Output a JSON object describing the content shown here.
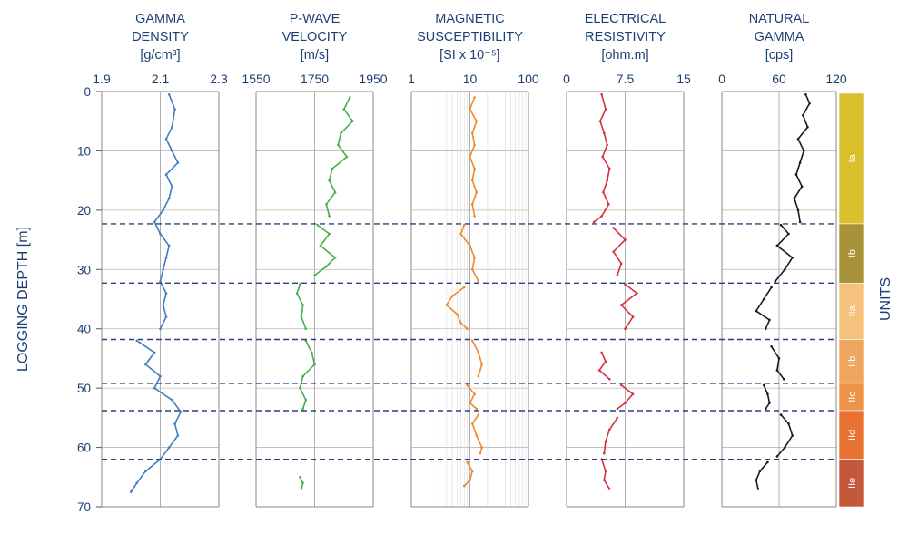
{
  "chart_data": {
    "type": "line",
    "y_axis": {
      "label": "LOGGING DEPTH [m]",
      "range": [
        0,
        70
      ],
      "ticks": [
        "0",
        "10",
        "20",
        "30",
        "40",
        "50",
        "60",
        "70"
      ],
      "grid": true
    },
    "units_label": "UNITS",
    "unit_boundaries_depth": [
      22.3,
      32.3,
      41.8,
      49.2,
      53.8,
      62.0
    ],
    "units": [
      {
        "name": "Ia",
        "top": 0.3,
        "bottom": 22.3,
        "color": "#d8bf2b"
      },
      {
        "name": "Ib",
        "top": 22.3,
        "bottom": 32.3,
        "color": "#a8933a"
      },
      {
        "name": "IIa",
        "top": 32.3,
        "bottom": 41.8,
        "color": "#f4c27a"
      },
      {
        "name": "IIb",
        "top": 41.8,
        "bottom": 49.2,
        "color": "#eea55d"
      },
      {
        "name": "IIc",
        "top": 49.2,
        "bottom": 53.8,
        "color": "#ee9347"
      },
      {
        "name": "IId",
        "top": 53.8,
        "bottom": 62.0,
        "color": "#ea7134"
      },
      {
        "name": "IIe",
        "top": 62.0,
        "bottom": 70.0,
        "color": "#c4583a"
      }
    ],
    "panels": [
      {
        "title": [
          "GAMMA",
          "DENSITY",
          "[g/cm³]"
        ],
        "tick_labels": [
          "1.9",
          "2.1",
          "2.3"
        ],
        "tick_values": [
          1.9,
          2.1,
          2.3
        ],
        "range": [
          1.9,
          2.3
        ],
        "scale": "linear",
        "color": "#3f7fc0",
        "segments": [
          {
            "depth": [
              0.5,
              3,
              6,
              8,
              10,
              12,
              14,
              16,
              18,
              20,
              22,
              24,
              26,
              28,
              30,
              32,
              34,
              36,
              38,
              40
            ],
            "value": [
              2.13,
              2.15,
              2.14,
              2.12,
              2.14,
              2.16,
              2.12,
              2.14,
              2.13,
              2.11,
              2.08,
              2.1,
              2.13,
              2.12,
              2.11,
              2.1,
              2.12,
              2.11,
              2.12,
              2.1
            ]
          },
          {
            "depth": [
              42,
              44,
              46,
              48,
              50,
              52,
              54,
              56,
              58,
              60,
              62,
              64,
              66,
              67.5
            ],
            "value": [
              2.02,
              2.08,
              2.05,
              2.1,
              2.08,
              2.14,
              2.17,
              2.15,
              2.16,
              2.13,
              2.1,
              2.05,
              2.02,
              2.0
            ]
          }
        ]
      },
      {
        "title": [
          "P-WAVE",
          "VELOCITY",
          "[m/s]"
        ],
        "tick_labels": [
          "1550",
          "1750",
          "1950"
        ],
        "tick_values": [
          1550,
          1750,
          1950
        ],
        "range": [
          1550,
          1950
        ],
        "scale": "linear",
        "color": "#4cad4c",
        "segments": [
          {
            "depth": [
              1,
              3,
              5,
              7,
              9,
              11,
              13,
              15,
              17,
              19,
              21
            ],
            "value": [
              1870,
              1850,
              1880,
              1840,
              1830,
              1860,
              1810,
              1800,
              1820,
              1790,
              1800
            ]
          },
          {
            "depth": [
              22.5,
              24,
              26,
              28,
              29.5,
              31
            ],
            "value": [
              1760,
              1800,
              1770,
              1820,
              1790,
              1750
            ]
          },
          {
            "depth": [
              32.5,
              34,
              36,
              38,
              40
            ],
            "value": [
              1700,
              1690,
              1710,
              1705,
              1720
            ]
          },
          {
            "depth": [
              42,
              44,
              46,
              48,
              50,
              52,
              53.5
            ],
            "value": [
              1720,
              1740,
              1750,
              1710,
              1700,
              1720,
              1710
            ]
          },
          {
            "depth": [
              65,
              66,
              67
            ],
            "value": [
              1700,
              1710,
              1705
            ]
          }
        ]
      },
      {
        "title": [
          "MAGNETIC",
          "SUSCEPTIBILITY",
          "[SI x 10⁻⁵]"
        ],
        "tick_labels": [
          "1",
          "10",
          "100"
        ],
        "tick_values": [
          1,
          10,
          100
        ],
        "range": [
          1,
          100
        ],
        "scale": "log",
        "color": "#ec8a2c",
        "segments": [
          {
            "depth": [
              1,
              3,
              5,
              7,
              9,
              11,
              13,
              15,
              17,
              19,
              21
            ],
            "value": [
              12,
              10,
              13,
              11,
              12,
              10,
              12,
              11,
              13,
              11,
              12
            ]
          },
          {
            "depth": [
              22.5,
              24,
              26,
              28,
              30,
              32
            ],
            "value": [
              8,
              7,
              10,
              12,
              11,
              14
            ]
          },
          {
            "depth": [
              33,
              34.5,
              36,
              37.5,
              39,
              40
            ],
            "value": [
              8,
              5,
              4,
              6,
              7,
              9
            ]
          },
          {
            "depth": [
              42,
              44,
              46,
              48
            ],
            "value": [
              11,
              14,
              16,
              14
            ]
          },
          {
            "depth": [
              49.5,
              51,
              52.5,
              53.5
            ],
            "value": [
              9,
              12,
              10,
              13
            ]
          },
          {
            "depth": [
              54.5,
              56,
              58,
              60,
              61
            ],
            "value": [
              14,
              11,
              13,
              16,
              15
            ]
          },
          {
            "depth": [
              62.5,
              64,
              65.5,
              66.5
            ],
            "value": [
              9,
              11,
              10,
              8
            ]
          }
        ]
      },
      {
        "title": [
          "ELECTRICAL",
          "RESISTIVITY",
          "[ohm.m]"
        ],
        "tick_labels": [
          "0",
          "7.5",
          "15"
        ],
        "tick_values": [
          0,
          7.5,
          15
        ],
        "range": [
          0,
          15
        ],
        "scale": "linear",
        "color": "#d63040",
        "segments": [
          {
            "depth": [
              0.5,
              3,
              5,
              7,
              9,
              11,
              13,
              15,
              17,
              19,
              21,
              22
            ],
            "value": [
              4.5,
              5.0,
              4.3,
              4.8,
              5.2,
              4.6,
              5.5,
              5.2,
              4.7,
              5.4,
              4.5,
              3.5
            ]
          },
          {
            "depth": [
              23,
              25,
              27,
              29,
              31
            ],
            "value": [
              6.0,
              7.5,
              6.0,
              7.0,
              6.5
            ]
          },
          {
            "depth": [
              32.5,
              34,
              36,
              38,
              40
            ],
            "value": [
              7.5,
              9.0,
              7.0,
              8.5,
              7.5
            ]
          },
          {
            "depth": [
              44,
              45.5,
              47,
              48.5
            ],
            "value": [
              4.5,
              5.0,
              4.2,
              5.5
            ]
          },
          {
            "depth": [
              49.5,
              51,
              52.5,
              53.5
            ],
            "value": [
              7.0,
              8.5,
              7.5,
              6.5
            ]
          },
          {
            "depth": [
              55,
              57,
              59,
              61
            ],
            "value": [
              6.5,
              5.5,
              5.0,
              4.8
            ]
          },
          {
            "depth": [
              62,
              64,
              65.5,
              67
            ],
            "value": [
              4.5,
              5.0,
              4.8,
              5.5
            ]
          }
        ]
      },
      {
        "title": [
          "NATURAL",
          "GAMMA",
          "[cps]"
        ],
        "tick_labels": [
          "0",
          "60",
          "120"
        ],
        "tick_values": [
          0,
          60,
          120
        ],
        "range": [
          0,
          120
        ],
        "scale": "linear",
        "color": "#1a1a1a",
        "segments": [
          {
            "depth": [
              0.5,
              2,
              4,
              6,
              8,
              10,
              12,
              14,
              16,
              18,
              20,
              22
            ],
            "value": [
              88,
              92,
              85,
              90,
              80,
              86,
              82,
              78,
              84,
              76,
              80,
              82
            ]
          },
          {
            "depth": [
              22.5,
              24,
              26,
              28,
              30,
              32
            ],
            "value": [
              62,
              70,
              58,
              74,
              66,
              56
            ]
          },
          {
            "depth": [
              33,
              35,
              37,
              38.5,
              40
            ],
            "value": [
              52,
              44,
              36,
              50,
              46
            ]
          },
          {
            "depth": [
              43,
              45,
              47,
              48.5
            ],
            "value": [
              52,
              60,
              58,
              65
            ]
          },
          {
            "depth": [
              49.5,
              51,
              52.5,
              53.5
            ],
            "value": [
              44,
              48,
              50,
              46
            ]
          },
          {
            "depth": [
              54.5,
              56,
              58,
              60,
              61.5
            ],
            "value": [
              62,
              70,
              74,
              66,
              58
            ]
          },
          {
            "depth": [
              62.5,
              64,
              65.5,
              67
            ],
            "value": [
              48,
              40,
              36,
              38
            ]
          }
        ]
      }
    ]
  }
}
